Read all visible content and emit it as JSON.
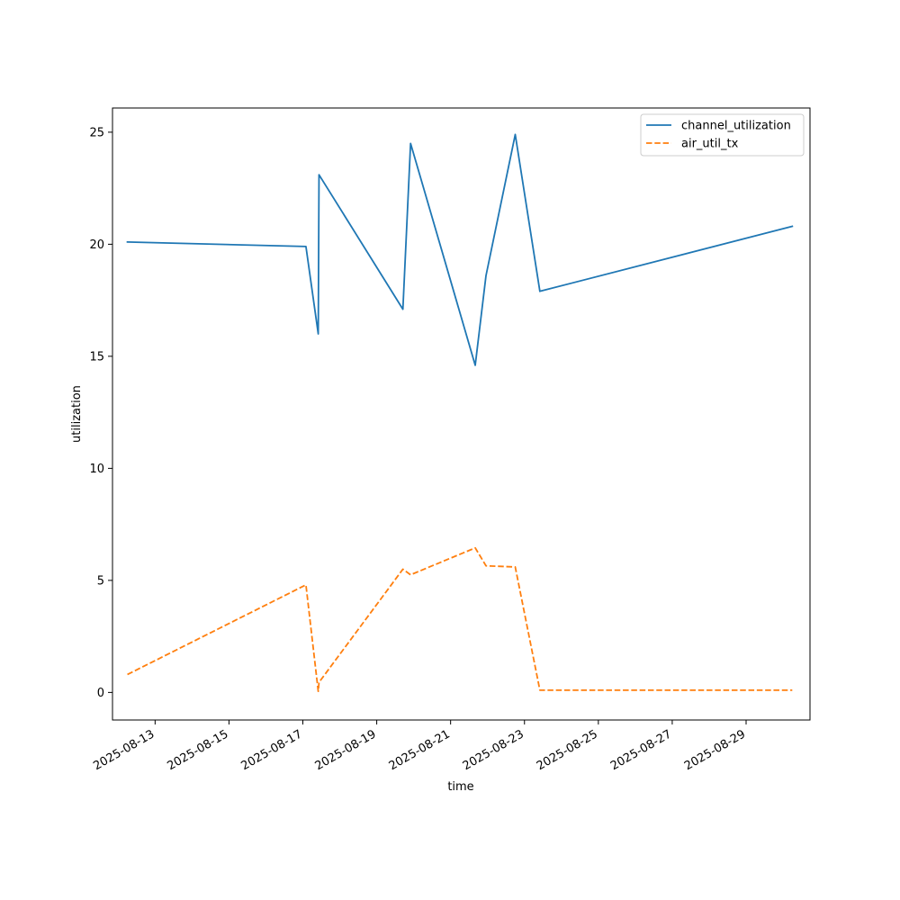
{
  "chart_data": {
    "type": "line",
    "xlabel": "time",
    "ylabel": "utilization",
    "x_tick_labels": [
      "2025-08-13",
      "2025-08-15",
      "2025-08-17",
      "2025-08-19",
      "2025-08-21",
      "2025-08-23",
      "2025-08-25",
      "2025-08-27",
      "2025-08-29"
    ],
    "x_ticks": [
      "2025-08-13T00:00",
      "2025-08-15T00:00",
      "2025-08-17T00:00",
      "2025-08-19T00:00",
      "2025-08-21T00:00",
      "2025-08-23T00:00",
      "2025-08-25T00:00",
      "2025-08-27T00:00",
      "2025-08-29T00:00"
    ],
    "xlim": [
      "2025-08-11T20:19",
      "2025-08-30T17:31"
    ],
    "y_ticks": [
      0,
      5,
      10,
      15,
      20,
      25
    ],
    "y_tick_labels": [
      "0",
      "5",
      "10",
      "15",
      "20",
      "25"
    ],
    "ylim": [
      -1.23,
      26.08
    ],
    "grid": false,
    "legend_position": "top-right",
    "x": [
      "2025-08-12T06:00",
      "2025-08-17T02:00",
      "2025-08-17T10:00",
      "2025-08-17T10:30",
      "2025-08-19T17:00",
      "2025-08-19T22:00",
      "2025-08-21T16:00",
      "2025-08-21T23:00",
      "2025-08-22T18:00",
      "2025-08-23T10:00",
      "2025-08-30T06:00"
    ],
    "series": [
      {
        "name": "channel_utilization",
        "color": "#1f77b4",
        "style": "solid",
        "values": [
          20.1,
          19.9,
          16.0,
          23.1,
          17.1,
          24.5,
          14.6,
          18.6,
          24.9,
          17.9,
          20.8
        ]
      },
      {
        "name": "air_util_tx",
        "color": "#ff7f0e",
        "style": "dashed",
        "values": [
          0.8,
          4.8,
          0.05,
          0.45,
          5.5,
          5.25,
          6.45,
          5.65,
          5.6,
          0.1,
          0.1
        ]
      }
    ]
  }
}
